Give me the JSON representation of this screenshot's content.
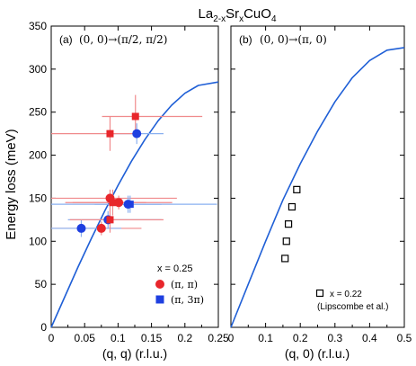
{
  "title": {
    "base": "La",
    "sub1": "2-x",
    "mid": "Sr",
    "sub2": "x",
    "tail": "CuO",
    "sub3": "4"
  },
  "shared_ylabel": "Energy loss (meV)",
  "chart_data": [
    {
      "type": "scatter",
      "panel_label": "(a)",
      "path_label": "(0, 0)→(π/2, π/2)",
      "xlabel": "(q, q) (r.l.u.)",
      "ylabel": "Energy loss (meV)",
      "xlim": [
        0,
        0.25
      ],
      "ylim": [
        0,
        350
      ],
      "xticks": [
        0,
        0.05,
        0.1,
        0.15,
        0.2,
        0.25
      ],
      "xtick_labels": [
        "0",
        "0.05",
        "0.1",
        "0.15",
        "0.2",
        "0.25"
      ],
      "yticks": [
        0,
        50,
        100,
        150,
        200,
        250,
        300,
        350
      ],
      "ytick_labels": [
        "0",
        "50",
        "100",
        "150",
        "200",
        "250",
        "300",
        "350"
      ],
      "grid": false,
      "legend_position": "bottom-right",
      "legend_title": "x = 0.25",
      "curve": {
        "color": "#1f5fd6",
        "x": [
          0,
          0.02,
          0.04,
          0.06,
          0.08,
          0.1,
          0.12,
          0.14,
          0.16,
          0.18,
          0.2,
          0.22,
          0.25
        ],
        "y": [
          0,
          35,
          70,
          103,
          135,
          165,
          193,
          218,
          240,
          258,
          272,
          281,
          285
        ]
      },
      "series": [
        {
          "name": "(π, π)",
          "color": "#e8262b",
          "marker": "circle",
          "points": [
            {
              "x": 0.088,
              "y": 150,
              "xerr_low": 0.088,
              "xerr_high": 0.1,
              "yerr": 10
            },
            {
              "x": 0.101,
              "y": 145,
              "xerr_low": 0.08,
              "xerr_high": 0.08,
              "yerr": 8
            },
            {
              "x": 0.075,
              "y": 115,
              "xerr_low": 0.075,
              "xerr_high": 0.06,
              "yerr": 8
            }
          ]
        },
        {
          "name": "(π, 3π)",
          "color": "#1e3fe0",
          "marker": "circle",
          "points": [
            {
              "x": 0.128,
              "y": 225,
              "xerr_low": 0.04,
              "xerr_high": 0.04,
              "yerr": 12
            },
            {
              "x": 0.045,
              "y": 115,
              "xerr_low": 0.045,
              "xerr_high": 0.06,
              "yerr": 10
            },
            {
              "x": 0.085,
              "y": 125,
              "xerr_low": 0.06,
              "xerr_high": 0.08,
              "yerr": 10
            },
            {
              "x": 0.115,
              "y": 143,
              "xerr_low": 0.05,
              "xerr_high": 0.05,
              "yerr": 10
            }
          ]
        },
        {
          "name": "red squares",
          "color": "#e8262b",
          "marker": "square",
          "points": [
            {
              "x": 0.088,
              "y": 225,
              "xerr_low": 0.088,
              "xerr_high": 0.04,
              "yerr": 20
            },
            {
              "x": 0.126,
              "y": 245,
              "xerr_low": 0.05,
              "xerr_high": 0.1,
              "yerr": 25
            },
            {
              "x": 0.088,
              "y": 125,
              "xerr_low": 0.06,
              "xerr_high": 0.08,
              "yerr": 15
            },
            {
              "x": 0.092,
              "y": 145,
              "xerr_low": 0.06,
              "xerr_high": 0.05,
              "yerr": 15
            }
          ]
        },
        {
          "name": "blue squares",
          "color": "#1e3fe0",
          "marker": "square",
          "points": [
            {
              "x": 0.118,
              "y": 143,
              "xerr_low": 0.118,
              "xerr_high": 0.13,
              "yerr": 10
            }
          ]
        }
      ]
    },
    {
      "type": "scatter",
      "panel_label": "(b)",
      "path_label": "(0, 0)→(π, 0)",
      "xlabel": "(q, 0) (r.l.u.)",
      "xlim": [
        0,
        0.5
      ],
      "ylim": [
        0,
        350
      ],
      "xticks": [
        0,
        0.1,
        0.2,
        0.3,
        0.4,
        0.5
      ],
      "xtick_labels": [
        "0",
        "0.1",
        "0.2",
        "0.3",
        "0.4",
        "0.5"
      ],
      "grid": false,
      "legend_position": "bottom-right",
      "curve": {
        "color": "#1f5fd6",
        "x": [
          0,
          0.05,
          0.1,
          0.15,
          0.2,
          0.25,
          0.3,
          0.35,
          0.4,
          0.45,
          0.5
        ],
        "y": [
          0,
          50,
          100,
          148,
          190,
          228,
          262,
          290,
          310,
          322,
          325
        ]
      },
      "series": [
        {
          "name": "x = 0.22",
          "annotation": "(Lipscombe et al.)",
          "color": "#000000",
          "marker": "open-square",
          "points": [
            {
              "x": 0.156,
              "y": 80
            },
            {
              "x": 0.16,
              "y": 100
            },
            {
              "x": 0.166,
              "y": 120
            },
            {
              "x": 0.176,
              "y": 140
            },
            {
              "x": 0.19,
              "y": 160
            }
          ]
        }
      ]
    }
  ]
}
